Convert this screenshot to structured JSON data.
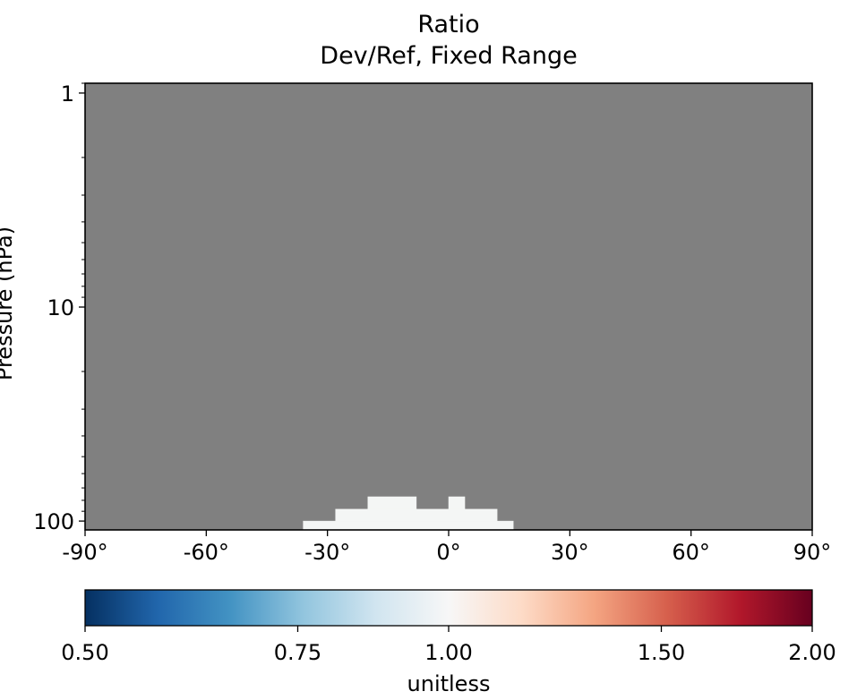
{
  "chart_data": {
    "type": "heatmap",
    "title": "Ratio",
    "subtitle": "Dev/Ref, Fixed Range",
    "ylabel": "Pressure (hPa)",
    "xlabel": "",
    "x_range": [
      -90,
      90
    ],
    "y_range": [
      110,
      0.9
    ],
    "y_scale": "log",
    "x_ticks": [
      "-90°",
      "-60°",
      "-30°",
      "0°",
      "30°",
      "60°",
      "90°"
    ],
    "x_tick_values": [
      -90,
      -60,
      -30,
      0,
      30,
      60,
      90
    ],
    "y_ticks": [
      "1",
      "10",
      "100"
    ],
    "y_tick_values": [
      1,
      10,
      100
    ],
    "background_value_color": "#808080",
    "cells": [
      {
        "lat_min": -36,
        "lat_max": 16,
        "p_top": 100,
        "p_bottom": 110,
        "value": 1.0
      },
      {
        "lat_min": -28,
        "lat_max": 12,
        "p_top": 88,
        "p_bottom": 100,
        "value": 1.0
      },
      {
        "lat_min": -20,
        "lat_max": -8,
        "p_top": 77,
        "p_bottom": 88,
        "value": 1.0
      },
      {
        "lat_min": 0,
        "lat_max": 4,
        "p_top": 77,
        "p_bottom": 88,
        "value": 1.0
      }
    ],
    "colorbar": {
      "label": "unitless",
      "range": [
        0.5,
        2.0
      ],
      "scale": "log",
      "ticks": [
        "0.50",
        "0.75",
        "1.00",
        "1.50",
        "2.00"
      ],
      "tick_values": [
        0.5,
        0.75,
        1.0,
        1.5,
        2.0
      ],
      "colormap": "RdBu_r"
    }
  }
}
